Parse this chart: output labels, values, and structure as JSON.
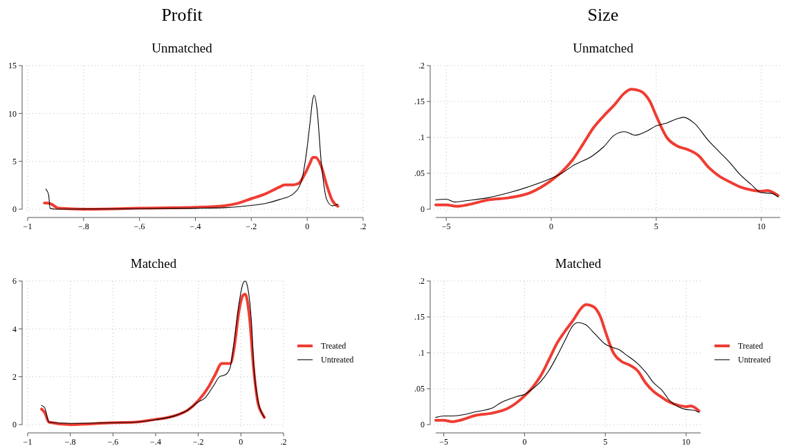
{
  "chart_data": [
    {
      "type": "line",
      "title": "Profit",
      "subtitle": "Unmatched",
      "xlim": [
        -1,
        0.2
      ],
      "ylim": [
        0,
        15
      ],
      "grid": true,
      "legend": false,
      "xticks": [
        {
          "value": -1,
          "label": "−1"
        },
        {
          "value": -0.8,
          "label": "−.8"
        },
        {
          "value": -0.6,
          "label": "−.6"
        },
        {
          "value": -0.4,
          "label": "−.4"
        },
        {
          "value": -0.2,
          "label": "−.2"
        },
        0,
        {
          "value": 0.2,
          "label": ".2"
        }
      ],
      "yticks": [
        0,
        5,
        10,
        15
      ],
      "series": [
        {
          "color": "#f03c32",
          "x": [
            -0.94,
            -0.92,
            -0.89,
            -0.8,
            -0.6,
            -0.4,
            -0.3,
            -0.25,
            -0.2,
            -0.15,
            -0.1,
            -0.08,
            -0.05,
            -0.03,
            -0.01,
            0.01,
            0.02,
            0.03,
            0.05,
            0.07,
            0.09,
            0.11
          ],
          "values": [
            0.65,
            0.6,
            0.1,
            0.0,
            0.1,
            0.2,
            0.35,
            0.6,
            1.1,
            1.6,
            2.3,
            2.55,
            2.55,
            2.7,
            3.6,
            4.8,
            5.4,
            5.4,
            4.5,
            2.5,
            0.9,
            0.3
          ]
        },
        {
          "color": "#000000",
          "x": [
            -0.935,
            -0.925,
            -0.92,
            -0.9,
            -0.6,
            -0.4,
            -0.3,
            -0.2,
            -0.15,
            -0.1,
            -0.05,
            -0.02,
            0.0,
            0.01,
            0.02,
            0.025,
            0.035,
            0.05,
            0.07,
            0.09,
            0.11
          ],
          "values": [
            2.1,
            1.5,
            0.1,
            0.0,
            0.05,
            0.1,
            0.15,
            0.4,
            0.6,
            1.0,
            1.6,
            3.0,
            6.5,
            9,
            11.5,
            11.9,
            10.5,
            5.0,
            1.0,
            0.35,
            0.5
          ]
        }
      ]
    },
    {
      "type": "line",
      "title": "Size",
      "subtitle": "Unmatched",
      "xlim": [
        -5.5,
        10.9
      ],
      "ylim": [
        0,
        0.2
      ],
      "grid": true,
      "legend": false,
      "xticks": [
        {
          "value": -5,
          "label": "−5"
        },
        0,
        5,
        10
      ],
      "yticks": [
        0,
        {
          "value": 0.05,
          "label": ".05"
        },
        {
          "value": 0.1,
          "label": ".1"
        },
        {
          "value": 0.15,
          "label": ".15"
        },
        {
          "value": 0.2,
          "label": ".2"
        }
      ],
      "series": [
        {
          "color": "#f03c32",
          "x": [
            -5.5,
            -5,
            -4.5,
            -4,
            -3,
            -2,
            -1,
            0,
            0.5,
            1,
            1.5,
            2,
            2.5,
            3,
            3.5,
            3.8,
            4.2,
            4.7,
            5,
            5.5,
            6,
            6.5,
            7,
            7.5,
            8,
            8.5,
            9,
            9.5,
            10,
            10.3,
            10.8
          ],
          "values": [
            0.006,
            0.006,
            0.004,
            0.006,
            0.013,
            0.016,
            0.023,
            0.04,
            0.052,
            0.068,
            0.09,
            0.113,
            0.13,
            0.145,
            0.162,
            0.167,
            0.165,
            0.15,
            0.13,
            0.1,
            0.088,
            0.083,
            0.075,
            0.058,
            0.046,
            0.038,
            0.031,
            0.027,
            0.025,
            0.026,
            0.019
          ]
        },
        {
          "color": "#000000",
          "x": [
            -5.5,
            -5,
            -4.6,
            -4,
            -3,
            -2,
            -1,
            0,
            0.5,
            1,
            2,
            2.5,
            3,
            3.5,
            4,
            4.5,
            5,
            5.5,
            6,
            6.3,
            6.8,
            7.5,
            8,
            8.5,
            9,
            9.5,
            10,
            10.5,
            10.8
          ],
          "values": [
            0.013,
            0.014,
            0.01,
            0.012,
            0.016,
            0.023,
            0.032,
            0.043,
            0.05,
            0.06,
            0.075,
            0.087,
            0.103,
            0.108,
            0.103,
            0.108,
            0.116,
            0.12,
            0.126,
            0.128,
            0.12,
            0.095,
            0.08,
            0.065,
            0.048,
            0.035,
            0.023,
            0.022,
            0.017
          ]
        }
      ]
    },
    {
      "type": "line",
      "title": "Matched",
      "xlim": [
        -1,
        0.2
      ],
      "ylim": [
        0,
        6
      ],
      "grid": true,
      "legend": "right",
      "xticks": [
        {
          "value": -1,
          "label": "−1"
        },
        {
          "value": -0.8,
          "label": "−.8"
        },
        {
          "value": -0.6,
          "label": "−.6"
        },
        {
          "value": -0.4,
          "label": "−.4"
        },
        {
          "value": -0.2,
          "label": "−.2"
        },
        0,
        {
          "value": 0.2,
          "label": ".2"
        }
      ],
      "yticks": [
        0,
        2,
        4,
        6
      ],
      "series": [
        {
          "name": "Treated",
          "color": "#f03c32",
          "x": [
            -0.935,
            -0.92,
            -0.9,
            -0.8,
            -0.6,
            -0.5,
            -0.4,
            -0.35,
            -0.3,
            -0.25,
            -0.2,
            -0.15,
            -0.12,
            -0.09,
            -0.07,
            -0.05,
            -0.03,
            -0.01,
            0.01,
            0.02,
            0.04,
            0.06,
            0.08,
            0.1,
            0.11
          ],
          "values": [
            0.65,
            0.5,
            0.1,
            0.0,
            0.08,
            0.1,
            0.22,
            0.28,
            0.4,
            0.6,
            1.0,
            1.6,
            2.1,
            2.55,
            2.55,
            2.55,
            3.3,
            4.7,
            5.4,
            5.45,
            4.5,
            2.3,
            0.9,
            0.45,
            0.3
          ]
        },
        {
          "name": "Untreated",
          "color": "#000000",
          "x": [
            -0.935,
            -0.92,
            -0.9,
            -0.8,
            -0.6,
            -0.5,
            -0.4,
            -0.3,
            -0.25,
            -0.2,
            -0.17,
            -0.13,
            -0.1,
            -0.07,
            -0.05,
            -0.03,
            -0.01,
            0.01,
            0.02,
            0.03,
            0.05,
            0.06,
            0.08,
            0.1,
            0.11
          ],
          "values": [
            0.8,
            0.7,
            0.1,
            0.05,
            0.08,
            0.1,
            0.2,
            0.4,
            0.6,
            0.95,
            1.1,
            1.6,
            2.0,
            2.1,
            2.4,
            3.6,
            5.0,
            5.9,
            6.0,
            5.8,
            4.2,
            2.5,
            1.0,
            0.45,
            0.3
          ]
        }
      ]
    },
    {
      "type": "line",
      "title": "Matched",
      "xlim": [
        -5.5,
        10.9
      ],
      "ylim": [
        0,
        0.2
      ],
      "grid": true,
      "legend": "right",
      "xticks": [
        {
          "value": -5,
          "label": "−5"
        },
        0,
        5,
        10
      ],
      "yticks": [
        0,
        {
          "value": 0.05,
          "label": ".05"
        },
        {
          "value": 0.1,
          "label": ".1"
        },
        {
          "value": 0.15,
          "label": ".15"
        },
        {
          "value": 0.2,
          "label": ".2"
        }
      ],
      "series": [
        {
          "name": "Treated",
          "color": "#f03c32",
          "x": [
            -5.5,
            -5,
            -4.5,
            -4,
            -3,
            -2,
            -1,
            0,
            0.5,
            1,
            1.5,
            2,
            2.5,
            3,
            3.5,
            3.8,
            4.2,
            4.7,
            5,
            5.5,
            6,
            6.5,
            7,
            7.5,
            8,
            8.5,
            9,
            9.5,
            10,
            10.3,
            10.8
          ],
          "values": [
            0.006,
            0.006,
            0.004,
            0.006,
            0.013,
            0.016,
            0.023,
            0.04,
            0.052,
            0.068,
            0.09,
            0.113,
            0.13,
            0.145,
            0.162,
            0.167,
            0.165,
            0.15,
            0.13,
            0.1,
            0.088,
            0.083,
            0.075,
            0.058,
            0.046,
            0.038,
            0.031,
            0.027,
            0.025,
            0.026,
            0.019
          ]
        },
        {
          "name": "Untreated",
          "color": "#000000",
          "x": [
            -5.5,
            -5,
            -4.5,
            -4,
            -3,
            -2,
            -1.5,
            -1,
            -0.5,
            0,
            0.5,
            1,
            1.5,
            2,
            2.5,
            3,
            3.3,
            3.8,
            4.2,
            4.5,
            5,
            5.5,
            5.8,
            6.3,
            7,
            7.5,
            8,
            8.5,
            9,
            9.5,
            10,
            10.5,
            10.8
          ],
          "values": [
            0.01,
            0.012,
            0.012,
            0.013,
            0.018,
            0.023,
            0.03,
            0.035,
            0.039,
            0.042,
            0.05,
            0.06,
            0.075,
            0.095,
            0.117,
            0.138,
            0.142,
            0.139,
            0.13,
            0.123,
            0.112,
            0.107,
            0.105,
            0.097,
            0.085,
            0.073,
            0.058,
            0.048,
            0.033,
            0.025,
            0.021,
            0.02,
            0.017
          ]
        }
      ]
    }
  ]
}
